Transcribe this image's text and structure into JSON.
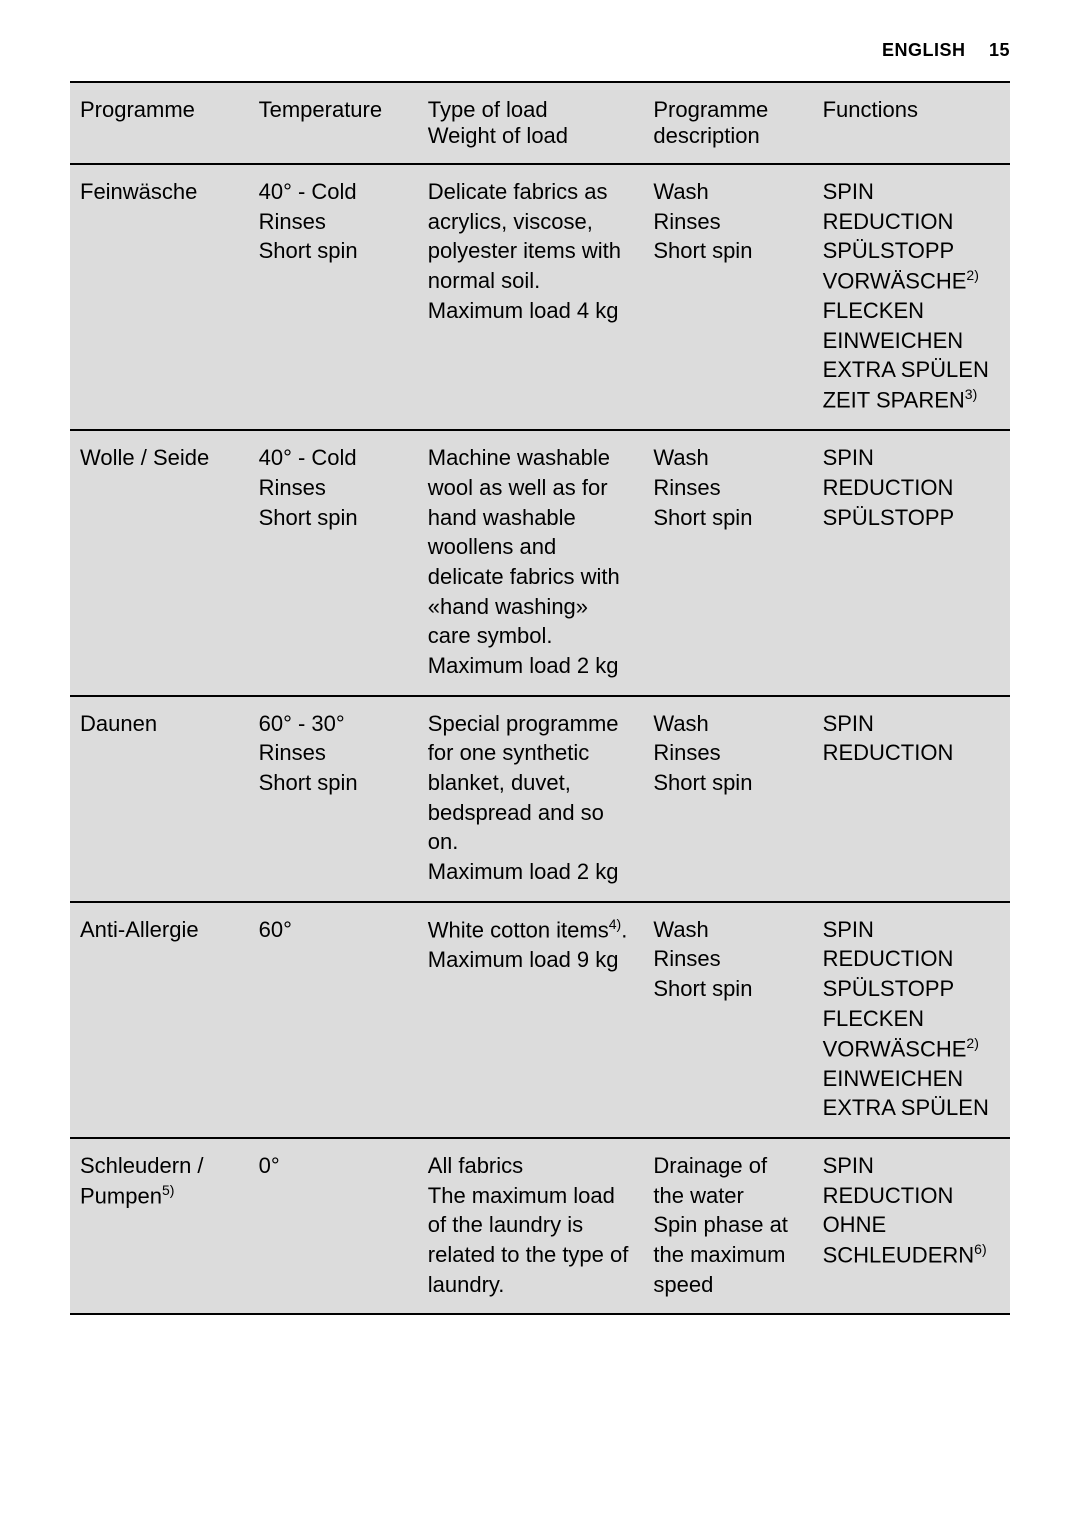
{
  "page": {
    "language": "ENGLISH",
    "number": "15"
  },
  "table": {
    "headers": {
      "programme": "Programme",
      "temperature": "Temperature",
      "typeload_l1": "Type of load",
      "typeload_l2": "Weight of load",
      "description": "Programme description",
      "functions": "Functions"
    },
    "rows": [
      {
        "programme": "Feinwäsche",
        "temperature": "40° - Cold\nRinses\nShort spin",
        "typeload": "Delicate fabrics as acrylics, viscose, polyester items with normal soil.\nMaximum load 4 kg",
        "description": "Wash\nRinses\nShort spin",
        "functions_parts": [
          "SPIN REDUCTION\nSPÜLSTOPP\nVORWÄSCHE",
          {
            "sup": "2)"
          },
          "\nFLECKEN\nEINWEICHEN\nEXTRA SPÜLEN\nZEIT SPAREN",
          {
            "sup": "3)"
          }
        ]
      },
      {
        "programme": "Wolle / Seide",
        "temperature": "40° - Cold\nRinses\nShort spin",
        "typeload": "Machine washable wool as well as for hand washable woollens and delicate fabrics with «hand washing» care symbol.\nMaximum load 2 kg",
        "description": "Wash\nRinses\nShort spin",
        "functions_parts": [
          "SPIN REDUCTION\nSPÜLSTOPP"
        ]
      },
      {
        "programme": "Daunen",
        "temperature": "60° - 30°\nRinses\nShort spin",
        "typeload": "Special programme for one synthetic blanket, duvet, bedspread and so on.\nMaximum load 2 kg",
        "description": "Wash\nRinses\nShort spin",
        "functions_parts": [
          "SPIN REDUCTION"
        ]
      },
      {
        "programme": "Anti-Allergie",
        "temperature": "60°",
        "typeload_parts": [
          "White cotton items",
          {
            "sup": "4)"
          },
          ".\nMaximum load 9 kg"
        ],
        "description": "Wash\nRinses\nShort spin",
        "functions_parts": [
          "SPIN REDUCTION\nSPÜLSTOPP\nFLECKEN\nVORWÄSCHE",
          {
            "sup": "2)"
          },
          "\nEINWEICHEN\nEXTRA SPÜLEN"
        ]
      },
      {
        "programme_parts": [
          "Schleudern / Pumpen",
          {
            "sup": "5)"
          }
        ],
        "temperature": "0°",
        "typeload": "All fabrics\nThe maximum load of the laundry is related to the type of laundry.",
        "description": "Drainage of the water\nSpin phase at the maximum speed",
        "functions_parts": [
          "SPIN REDUCTION\nOHNE SCHLEUDERN",
          {
            "sup": "6)"
          }
        ]
      }
    ]
  }
}
